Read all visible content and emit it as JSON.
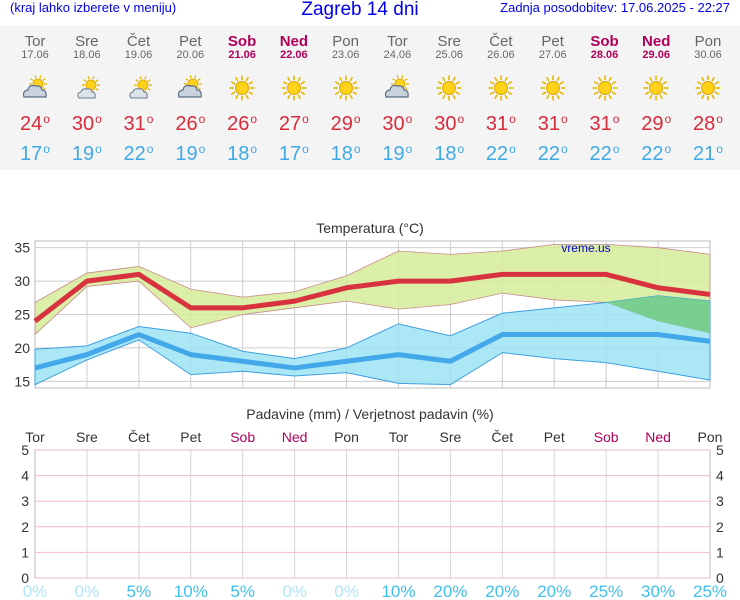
{
  "header": {
    "left_note": "(kraj lahko izberete v meniju)",
    "title": "Zagreb 14 dni",
    "updated": "Zadnja posodobitev: 17.06.2025 - 22:27"
  },
  "days": [
    {
      "name": "Tor",
      "date": "17.06",
      "weekend": false,
      "icon": "partly-cloudy-icon",
      "tmax": "24",
      "tmin": "17",
      "precip_prob": "0%"
    },
    {
      "name": "Sre",
      "date": "18.06",
      "weekend": false,
      "icon": "sun-behind-cloud-icon",
      "tmax": "30",
      "tmin": "19",
      "precip_prob": "0%"
    },
    {
      "name": "Čet",
      "date": "19.06",
      "weekend": false,
      "icon": "sun-behind-cloud-icon",
      "tmax": "31",
      "tmin": "22",
      "precip_prob": "5%"
    },
    {
      "name": "Pet",
      "date": "20.06",
      "weekend": false,
      "icon": "partly-cloudy-icon",
      "tmax": "26",
      "tmin": "19",
      "precip_prob": "10%"
    },
    {
      "name": "Sob",
      "date": "21.06",
      "weekend": true,
      "icon": "sun-icon",
      "tmax": "26",
      "tmin": "18",
      "precip_prob": "5%"
    },
    {
      "name": "Ned",
      "date": "22.06",
      "weekend": true,
      "icon": "sun-icon",
      "tmax": "27",
      "tmin": "17",
      "precip_prob": "0%"
    },
    {
      "name": "Pon",
      "date": "23.06",
      "weekend": false,
      "icon": "sun-icon",
      "tmax": "29",
      "tmin": "18",
      "precip_prob": "0%"
    },
    {
      "name": "Tor",
      "date": "24.06",
      "weekend": false,
      "icon": "partly-cloudy-icon",
      "tmax": "30",
      "tmin": "19",
      "precip_prob": "10%"
    },
    {
      "name": "Sre",
      "date": "25.06",
      "weekend": false,
      "icon": "sun-icon",
      "tmax": "30",
      "tmin": "18",
      "precip_prob": "20%"
    },
    {
      "name": "Čet",
      "date": "26.06",
      "weekend": false,
      "icon": "sun-icon",
      "tmax": "31",
      "tmin": "22",
      "precip_prob": "20%"
    },
    {
      "name": "Pet",
      "date": "27.06",
      "weekend": false,
      "icon": "sun-icon",
      "tmax": "31",
      "tmin": "22",
      "precip_prob": "20%"
    },
    {
      "name": "Sob",
      "date": "28.06",
      "weekend": true,
      "icon": "sun-icon",
      "tmax": "31",
      "tmin": "22",
      "precip_prob": "25%"
    },
    {
      "name": "Ned",
      "date": "29.06",
      "weekend": true,
      "icon": "sun-icon",
      "tmax": "29",
      "tmin": "22",
      "precip_prob": "30%"
    },
    {
      "name": "Pon",
      "date": "30.06",
      "weekend": false,
      "icon": "sun-icon",
      "tmax": "28",
      "tmin": "21",
      "precip_prob": "25%"
    }
  ],
  "colors": {
    "max_line": "#d8323f",
    "min_line": "#43a8ea",
    "max_band": "#d6ec9a",
    "min_band": "#9de3f3",
    "overlap_band": "#74cc86",
    "weekend_text": "#b0005a",
    "header_text": "#0000ee",
    "zero_precip_pct": "#aee6f7",
    "precip_pct": "#3fc0ec"
  },
  "chart_data": [
    {
      "type": "line",
      "title": "Temperatura (°C)",
      "watermark": "vreme.us",
      "ylim": [
        14,
        36
      ],
      "yticks": [
        15,
        20,
        25,
        30,
        35
      ],
      "grid": true,
      "series": [
        {
          "values": [
            24,
            30,
            31,
            26,
            26,
            27,
            29,
            30,
            30,
            31,
            31,
            31,
            29,
            28
          ]
        },
        {
          "values": [
            17,
            19,
            22,
            19,
            18,
            17,
            18,
            19,
            18,
            22,
            22,
            22,
            22,
            21
          ]
        }
      ],
      "bands": [
        {
          "upper": [
            26.8,
            31.2,
            32.2,
            28.8,
            27.6,
            28.4,
            30.8,
            34.5,
            34.0,
            34.5,
            35.5,
            35.5,
            35.0,
            34.0
          ],
          "lower": [
            22.0,
            29.2,
            30.0,
            23.0,
            25.0,
            26.0,
            27.0,
            25.8,
            26.5,
            28.2,
            27.2,
            26.8,
            24.0,
            22.2
          ]
        },
        {
          "upper": [
            19.8,
            20.3,
            23.2,
            22.2,
            19.5,
            18.4,
            20.0,
            23.6,
            21.8,
            25.2,
            26.0,
            26.8,
            27.8,
            27.0
          ],
          "lower": [
            14.5,
            18.2,
            21.2,
            16.0,
            16.5,
            15.8,
            16.3,
            14.7,
            14.5,
            19.3,
            18.4,
            17.8,
            16.5,
            15.2
          ]
        }
      ]
    },
    {
      "type": "bar",
      "title": "Padavine (mm) / Verjetnost padavin (%)",
      "categories": [
        "Tor",
        "Sre",
        "Čet",
        "Pet",
        "Sob",
        "Ned",
        "Pon",
        "Tor",
        "Sre",
        "Čet",
        "Pet",
        "Sob",
        "Ned",
        "Pon"
      ],
      "values": [
        0,
        0,
        0,
        0,
        0,
        0,
        0,
        0,
        0,
        0,
        0,
        0,
        0,
        0
      ],
      "probability": [
        "0%",
        "0%",
        "5%",
        "10%",
        "5%",
        "0%",
        "0%",
        "10%",
        "20%",
        "20%",
        "20%",
        "25%",
        "30%",
        "25%"
      ],
      "ylim": [
        0,
        5
      ],
      "yticks": [
        0,
        1,
        2,
        3,
        4,
        5
      ],
      "grid": true
    }
  ]
}
